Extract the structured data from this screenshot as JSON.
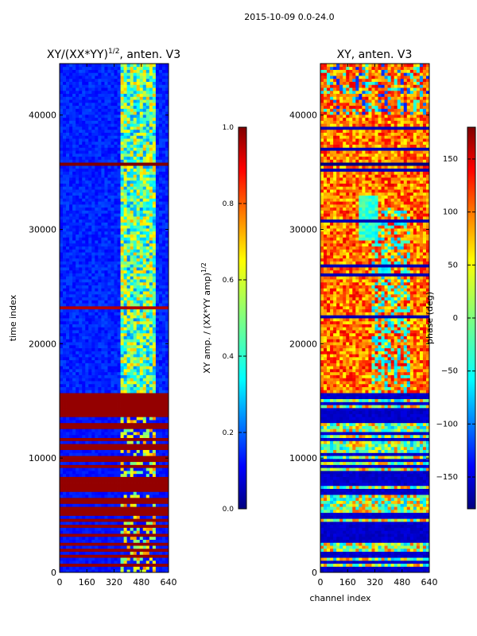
{
  "page_title": "2015-10-09 0.0-24.0",
  "chart_data": [
    {
      "type": "heatmap",
      "title_text": "XY/(XX*YY)",
      "title_sup": "1/2",
      "title_suffix": ", anten. V3",
      "xlabel": "",
      "ylabel": "time index",
      "xlim": [
        0,
        640
      ],
      "ylim": [
        0,
        44500
      ],
      "x_ticks": [
        0,
        160,
        320,
        480,
        640
      ],
      "x_tick_labels": [
        "0",
        "160",
        "320",
        "480",
        "640"
      ],
      "y_ticks": [
        0,
        10000,
        20000,
        30000,
        40000
      ],
      "y_tick_labels": [
        "0",
        "10000",
        "20000",
        "30000",
        "40000"
      ],
      "colorbar": {
        "label_text": "XY amp. / (XX*YY amp)",
        "label_sup": "1/2",
        "range": [
          0.0,
          1.0
        ],
        "ticks": [
          0.0,
          0.2,
          0.4,
          0.6,
          0.8,
          1.0
        ],
        "tick_labels": [
          "0.0",
          "0.2",
          "0.4",
          "0.6",
          "0.8",
          "1.0"
        ],
        "colormap": "jet"
      }
    },
    {
      "type": "heatmap",
      "title_text": "XY, anten. V3",
      "xlabel": "channel index",
      "ylabel": "",
      "xlim": [
        0,
        640
      ],
      "ylim": [
        0,
        44500
      ],
      "x_ticks": [
        0,
        160,
        320,
        480,
        640
      ],
      "x_tick_labels": [
        "0",
        "160",
        "320",
        "480",
        "640"
      ],
      "y_ticks": [
        0,
        10000,
        20000,
        30000,
        40000
      ],
      "y_tick_labels": [
        "0",
        "10000",
        "20000",
        "30000",
        "40000"
      ],
      "colorbar": {
        "label_text": "phase (deg)",
        "range": [
          -180,
          180
        ],
        "ticks": [
          -150,
          -100,
          -50,
          0,
          50,
          100,
          150
        ],
        "tick_labels": [
          "−150",
          "−100",
          "−50",
          "0",
          "50",
          "100",
          "150"
        ],
        "colormap": "jet"
      }
    }
  ],
  "colors": {
    "jet": [
      "#00007f",
      "#0000ff",
      "#007fff",
      "#00ffff",
      "#7fff7f",
      "#ffff00",
      "#ff7f00",
      "#ff0000",
      "#7f0000"
    ]
  }
}
